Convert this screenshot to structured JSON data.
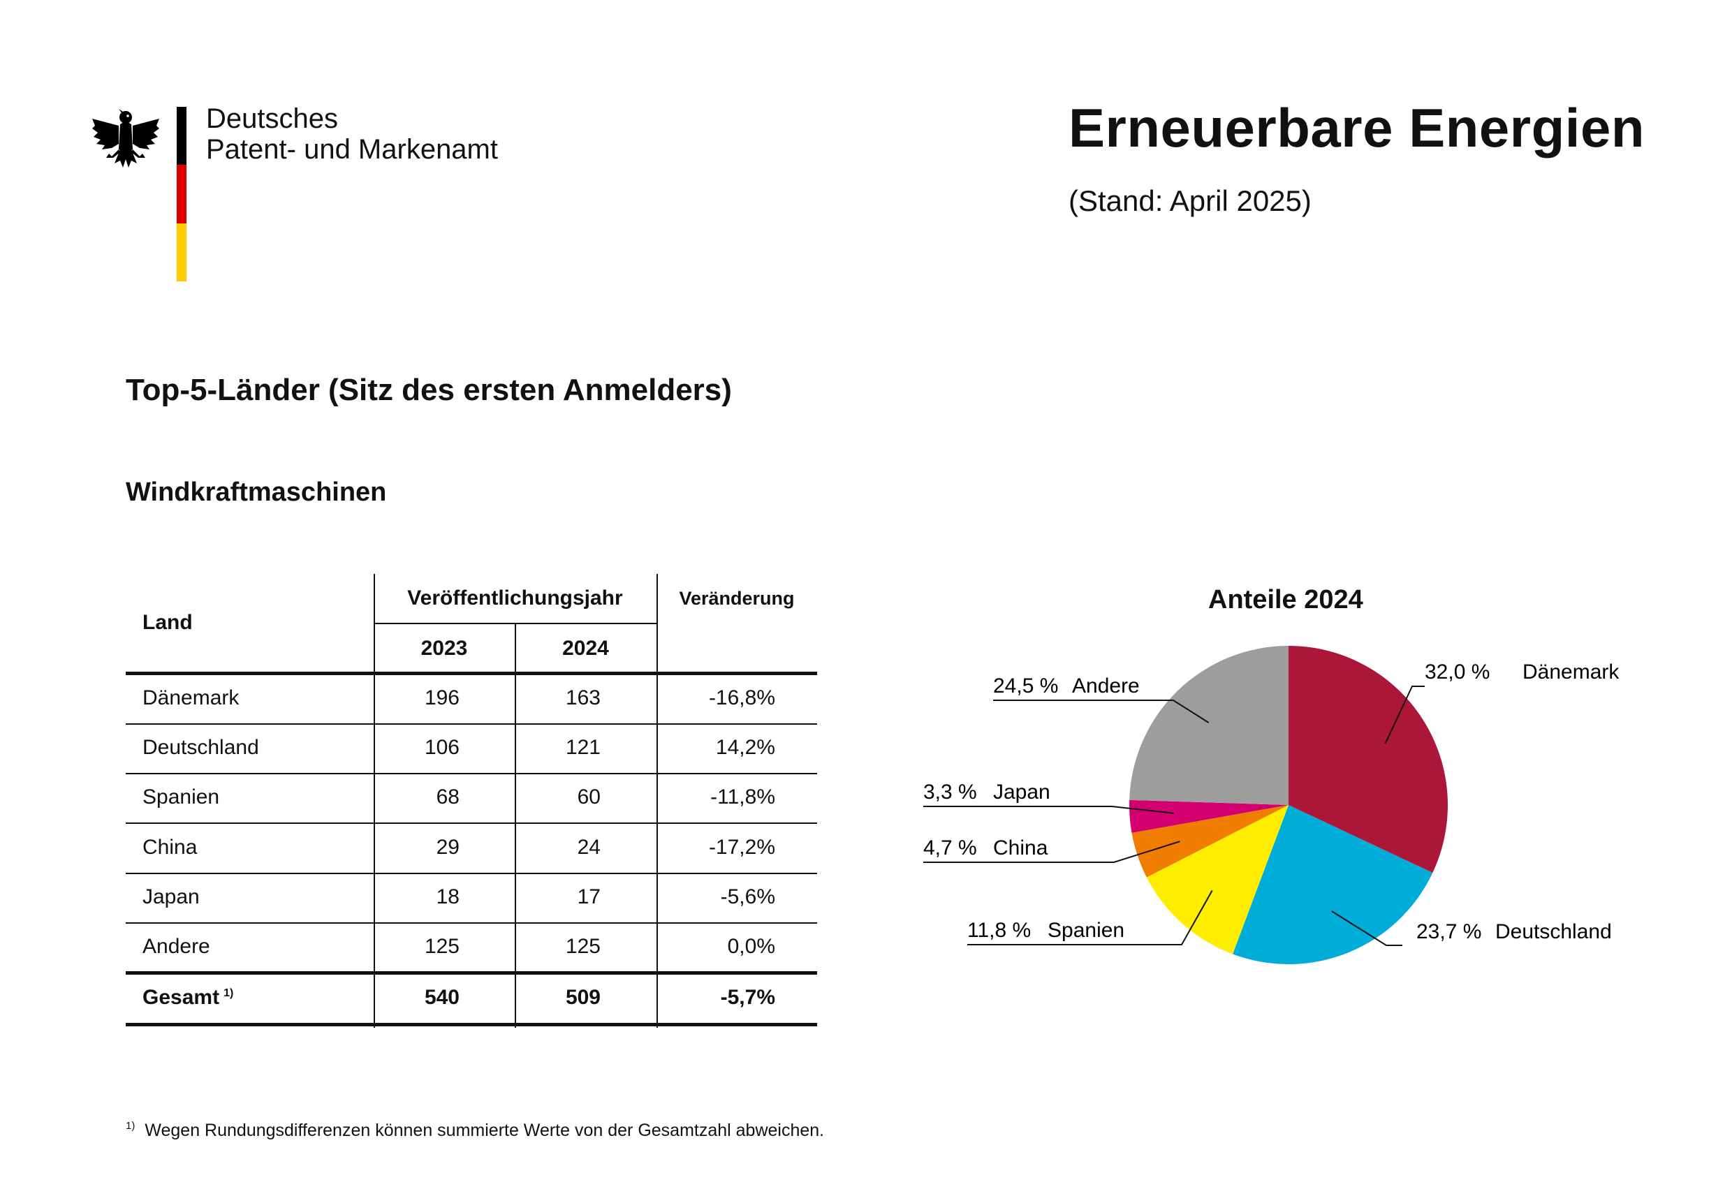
{
  "header": {
    "agency_line1": "Deutsches",
    "agency_line2": "Patent- und Markenamt",
    "title": "Erneuerbare Energien",
    "status": "(Stand: April 2025)"
  },
  "flag_colors": [
    "#000000",
    "#dd0000",
    "#ffcc00"
  ],
  "section_title": "Top-5-Länder (Sitz des ersten Anmelders)",
  "subsection_title": "Windkraftmaschinen",
  "table": {
    "col_country": "Land",
    "col_pubyear": "Veröffentlichungsjahr",
    "col_change": "Veränderung",
    "year1": "2023",
    "year2": "2024",
    "rows": [
      {
        "country": "Dänemark",
        "v2023": "196",
        "v2024": "163",
        "change": "-16,8%"
      },
      {
        "country": "Deutschland",
        "v2023": "106",
        "v2024": "121",
        "change": "14,2%"
      },
      {
        "country": "Spanien",
        "v2023": "68",
        "v2024": "60",
        "change": "-11,8%"
      },
      {
        "country": "China",
        "v2023": "29",
        "v2024": "24",
        "change": "-17,2%"
      },
      {
        "country": "Japan",
        "v2023": "18",
        "v2024": "17",
        "change": "-5,6%"
      },
      {
        "country": "Andere",
        "v2023": "125",
        "v2024": "125",
        "change": "0,0%"
      }
    ],
    "total": {
      "country": "Gesamt",
      "footnote_mark": "1)",
      "v2023": "540",
      "v2024": "509",
      "change": "-5,7%"
    }
  },
  "chart_data": {
    "type": "pie",
    "title": "Anteile 2024",
    "slices": [
      {
        "label": "Dänemark",
        "value": 32.0,
        "value_label": "32,0 %",
        "color": "#ab1639"
      },
      {
        "label": "Deutschland",
        "value": 23.7,
        "value_label": "23,7 %",
        "color": "#00acd8"
      },
      {
        "label": "Spanien",
        "value": 11.8,
        "value_label": "11,8 %",
        "color": "#ffed00"
      },
      {
        "label": "China",
        "value": 4.7,
        "value_label": "4,7 %",
        "color": "#f07d00"
      },
      {
        "label": "Japan",
        "value": 3.3,
        "value_label": "3,3 %",
        "color": "#d4006f"
      },
      {
        "label": "Andere",
        "value": 24.5,
        "value_label": "24,5 %",
        "color": "#9d9d9c"
      }
    ]
  },
  "footnote": {
    "mark": "1)",
    "text": "Wegen Rundungsdifferenzen können summierte Werte von der Gesamtzahl abweichen."
  }
}
